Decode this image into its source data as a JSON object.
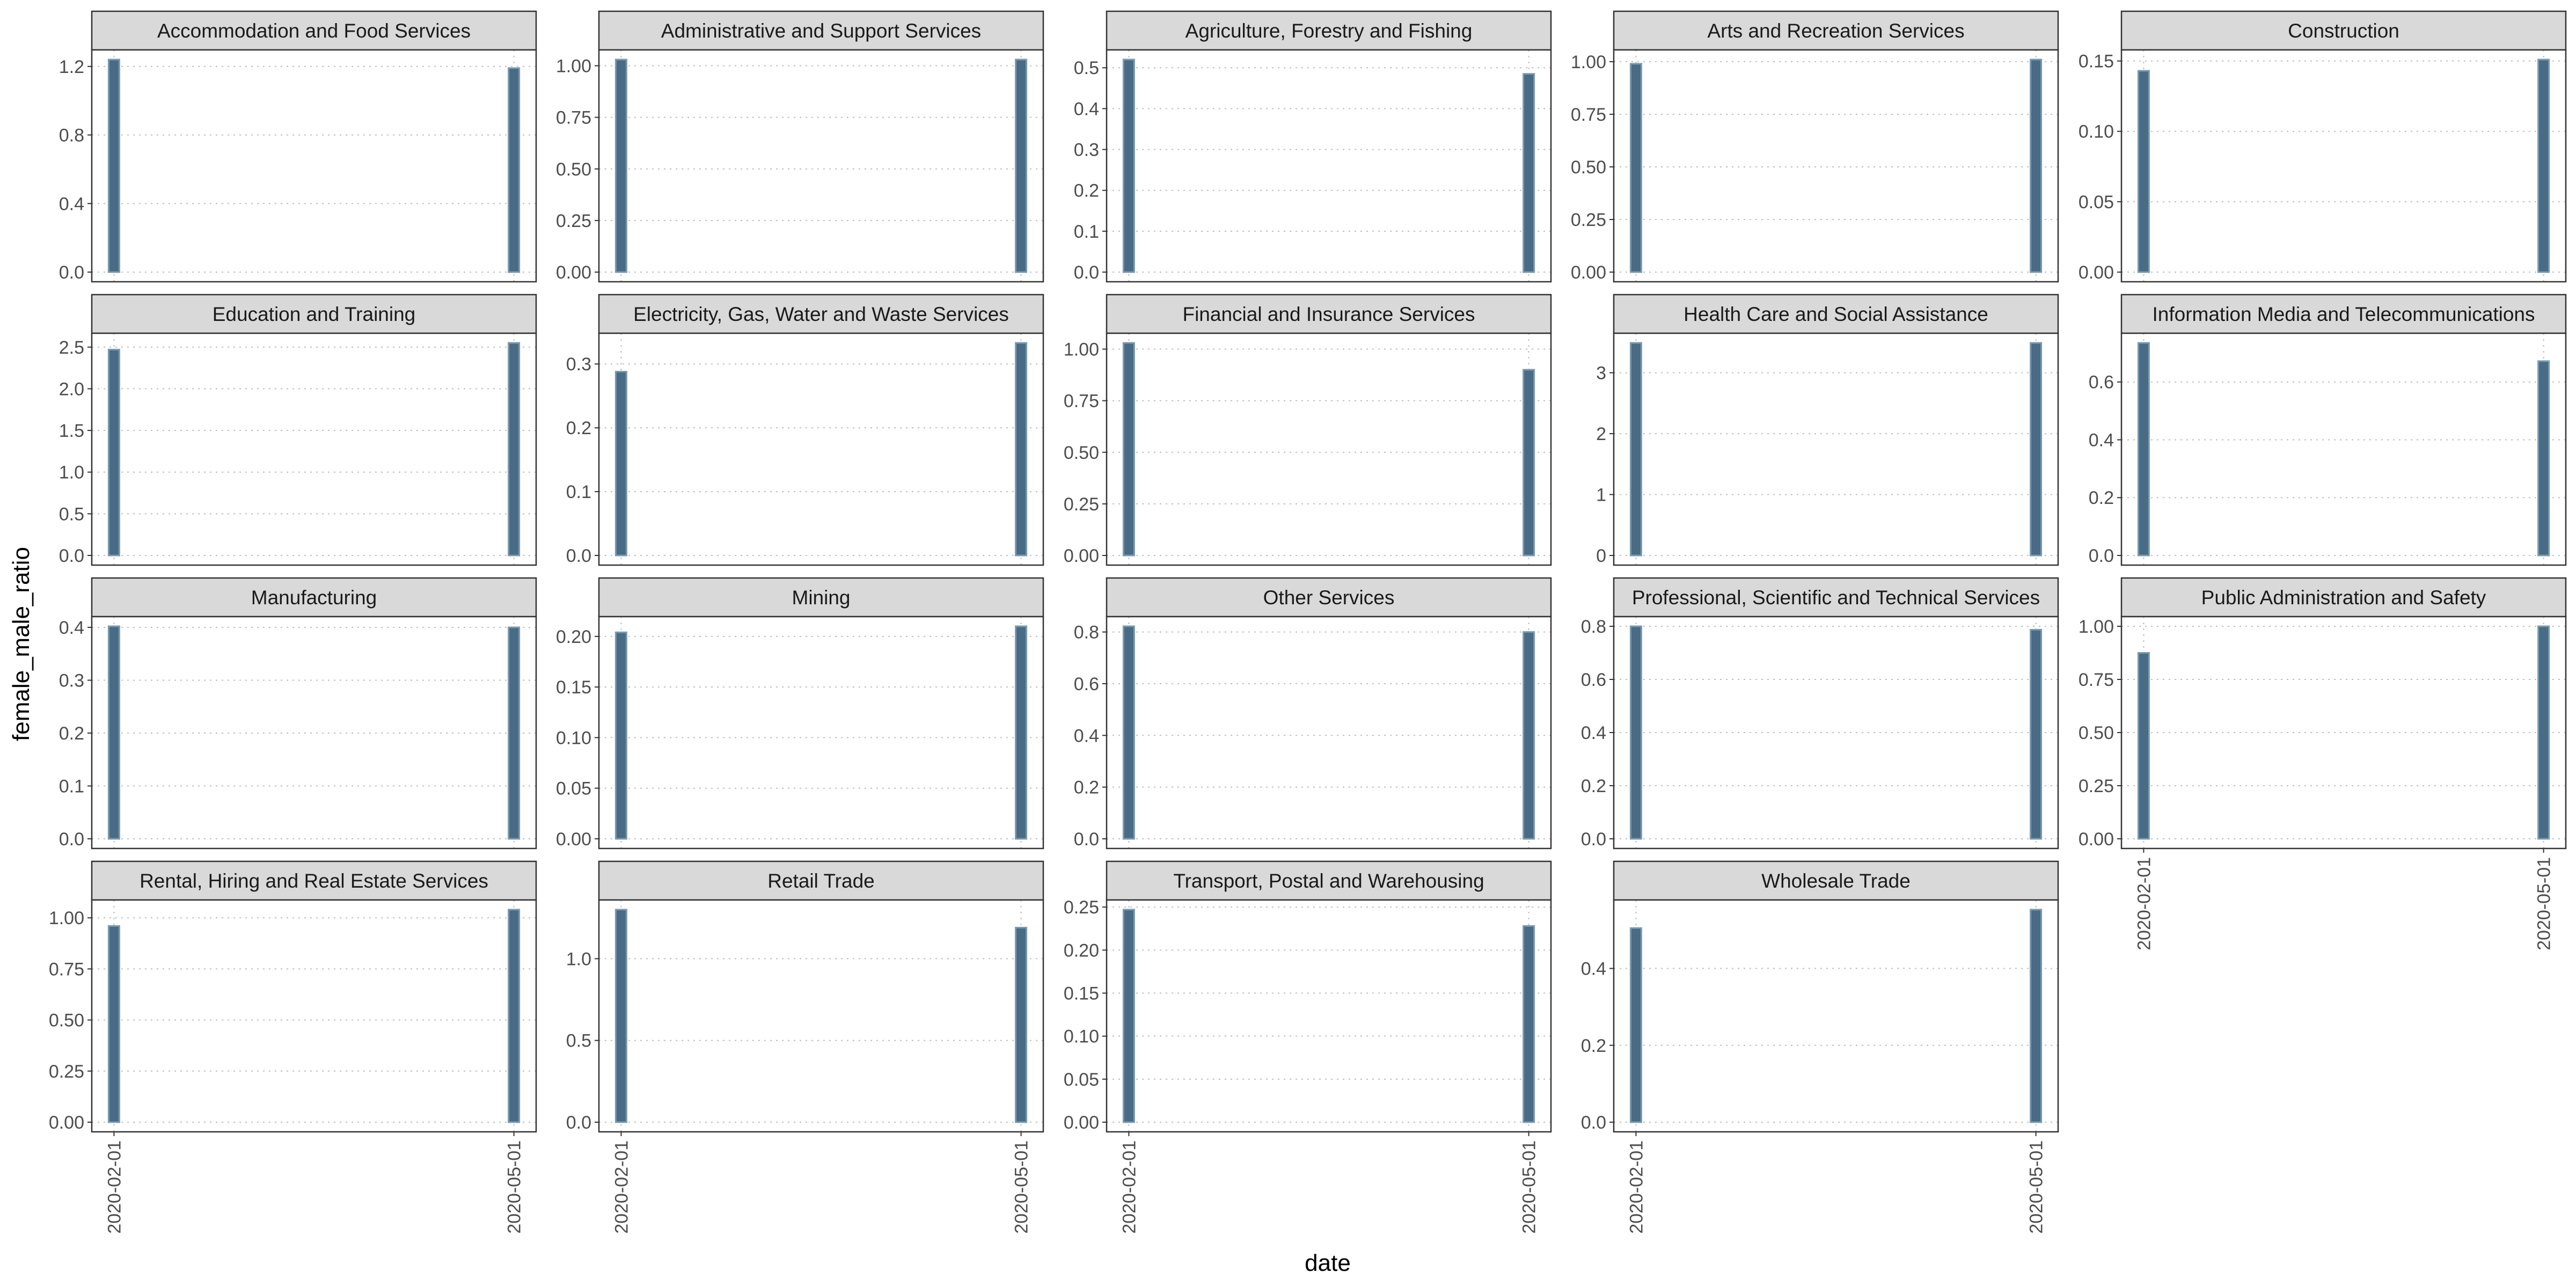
{
  "chart_data": {
    "type": "bar",
    "x_label": "date",
    "y_label": "female_male_ratio",
    "categories": [
      "2020-02-01",
      "2020-05-01"
    ],
    "grid": "dotted major gridlines",
    "colors": {
      "bar_fill": "#4a6b85",
      "bar_outline": "#7a9aad",
      "strip_fill": "#d9d9d9",
      "panel_border": "#333333",
      "grid": "#bdbdbd"
    },
    "panels": [
      {
        "title": "Accommodation and Food Services",
        "values": [
          1.24,
          1.19
        ],
        "yticks": [
          "0.0",
          "0.4",
          "0.8",
          "1.2"
        ],
        "ylim": [
          0,
          1.24
        ]
      },
      {
        "title": "Administrative and Support Services",
        "values": [
          1.03,
          1.03
        ],
        "yticks": [
          "0.00",
          "0.25",
          "0.50",
          "0.75",
          "1.00"
        ],
        "ylim": [
          0,
          1.03
        ]
      },
      {
        "title": "Agriculture, Forestry and Fishing",
        "values": [
          0.52,
          0.485
        ],
        "yticks": [
          "0.0",
          "0.1",
          "0.2",
          "0.3",
          "0.4",
          "0.5"
        ],
        "ylim": [
          0,
          0.52
        ]
      },
      {
        "title": "Arts and Recreation Services",
        "values": [
          0.99,
          1.01
        ],
        "yticks": [
          "0.00",
          "0.25",
          "0.50",
          "0.75",
          "1.00"
        ],
        "ylim": [
          0,
          1.01
        ]
      },
      {
        "title": "Construction",
        "values": [
          0.143,
          0.151
        ],
        "yticks": [
          "0.00",
          "0.05",
          "0.10",
          "0.15"
        ],
        "ylim": [
          0,
          0.151
        ]
      },
      {
        "title": "Education and Training",
        "values": [
          2.47,
          2.55
        ],
        "yticks": [
          "0.0",
          "0.5",
          "1.0",
          "1.5",
          "2.0",
          "2.5"
        ],
        "ylim": [
          0,
          2.55
        ]
      },
      {
        "title": "Electricity, Gas, Water and Waste Services",
        "values": [
          0.288,
          0.333
        ],
        "yticks": [
          "0.0",
          "0.1",
          "0.2",
          "0.3"
        ],
        "ylim": [
          0,
          0.333
        ]
      },
      {
        "title": "Financial and Insurance Services",
        "values": [
          1.03,
          0.9
        ],
        "yticks": [
          "0.00",
          "0.25",
          "0.50",
          "0.75",
          "1.00"
        ],
        "ylim": [
          0,
          1.03
        ]
      },
      {
        "title": "Health Care and Social Assistance",
        "values": [
          3.49,
          3.49
        ],
        "yticks": [
          "0",
          "1",
          "2",
          "3"
        ],
        "ylim": [
          0,
          3.49
        ]
      },
      {
        "title": "Information Media and Telecommunications",
        "values": [
          0.735,
          0.672
        ],
        "yticks": [
          "0.0",
          "0.2",
          "0.4",
          "0.6"
        ],
        "ylim": [
          0,
          0.735
        ]
      },
      {
        "title": "Manufacturing",
        "values": [
          0.402,
          0.4
        ],
        "yticks": [
          "0.0",
          "0.1",
          "0.2",
          "0.3",
          "0.4"
        ],
        "ylim": [
          0,
          0.402
        ]
      },
      {
        "title": "Mining",
        "values": [
          0.204,
          0.21
        ],
        "yticks": [
          "0.00",
          "0.05",
          "0.10",
          "0.15",
          "0.20"
        ],
        "ylim": [
          0,
          0.21
        ]
      },
      {
        "title": "Other Services",
        "values": [
          0.822,
          0.8
        ],
        "yticks": [
          "0.0",
          "0.2",
          "0.4",
          "0.6",
          "0.8"
        ],
        "ylim": [
          0,
          0.822
        ]
      },
      {
        "title": "Professional, Scientific and Technical Services",
        "values": [
          0.8,
          0.787
        ],
        "yticks": [
          "0.0",
          "0.2",
          "0.4",
          "0.6",
          "0.8"
        ],
        "ylim": [
          0,
          0.8
        ]
      },
      {
        "title": "Public Administration and Safety",
        "values": [
          0.875,
          1.0
        ],
        "yticks": [
          "0.00",
          "0.25",
          "0.50",
          "0.75",
          "1.00"
        ],
        "ylim": [
          0,
          1.0
        ]
      },
      {
        "title": "Rental, Hiring and Real Estate Services",
        "values": [
          0.96,
          1.04
        ],
        "yticks": [
          "0.00",
          "0.25",
          "0.50",
          "0.75",
          "1.00"
        ],
        "ylim": [
          0,
          1.04
        ]
      },
      {
        "title": "Retail Trade",
        "values": [
          1.3,
          1.19
        ],
        "yticks": [
          "0.0",
          "0.5",
          "1.0"
        ],
        "ylim": [
          0,
          1.3
        ]
      },
      {
        "title": "Transport, Postal and Warehousing",
        "values": [
          0.247,
          0.228
        ],
        "yticks": [
          "0.00",
          "0.05",
          "0.10",
          "0.15",
          "0.20",
          "0.25"
        ],
        "ylim": [
          0,
          0.247
        ]
      },
      {
        "title": "Wholesale Trade",
        "values": [
          0.505,
          0.553
        ],
        "yticks": [
          "0.0",
          "0.2",
          "0.4"
        ],
        "ylim": [
          0,
          0.553
        ]
      }
    ]
  }
}
